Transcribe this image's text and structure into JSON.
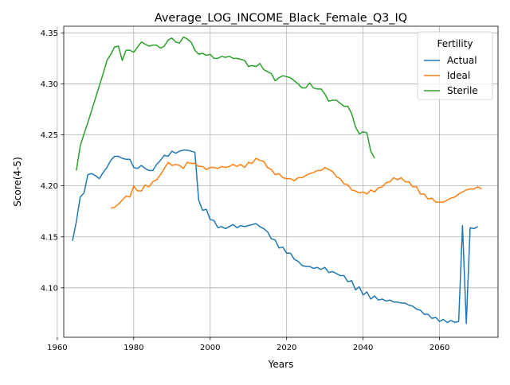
{
  "chart_data": {
    "type": "line",
    "title": "Average_LOG_INCOME_Black_Female_Q3_IQ",
    "xlabel": "Years",
    "ylabel": "Score(4-5)",
    "xlim": [
      1961.7,
      2075.3
    ],
    "ylim": [
      4.0515,
      4.3565
    ],
    "x_ticks": [
      1960,
      1980,
      2000,
      2020,
      2040,
      2060
    ],
    "y_ticks": [
      4.1,
      4.15,
      4.2,
      4.25,
      4.3,
      4.35
    ],
    "x_tick_labels": [
      "1960",
      "1980",
      "2000",
      "2020",
      "2040",
      "2060"
    ],
    "y_tick_labels": [
      "4.10",
      "4.15",
      "4.20",
      "4.25",
      "4.30",
      "4.35"
    ],
    "grid": true,
    "legend": {
      "title": "Fertility",
      "placement": "top-right"
    },
    "series": [
      {
        "name": "Actual",
        "color": "#1f77b4",
        "x_start": 1964,
        "values": [
          4.146,
          4.165,
          4.189,
          4.193,
          4.211,
          4.212,
          4.21,
          4.207,
          4.213,
          4.218,
          4.225,
          4.229,
          4.229,
          4.227,
          4.226,
          4.226,
          4.218,
          4.217,
          4.22,
          4.217,
          4.215,
          4.215,
          4.221,
          4.225,
          4.23,
          4.229,
          4.234,
          4.232,
          4.234,
          4.235,
          4.235,
          4.234,
          4.233,
          4.186,
          4.176,
          4.177,
          4.167,
          4.166,
          4.159,
          4.16,
          4.158,
          4.16,
          4.162,
          4.159,
          4.161,
          4.16,
          4.161,
          4.162,
          4.163,
          4.16,
          4.158,
          4.155,
          4.148,
          4.147,
          4.139,
          4.14,
          4.134,
          4.134,
          4.128,
          4.126,
          4.122,
          4.121,
          4.121,
          4.119,
          4.12,
          4.118,
          4.12,
          4.115,
          4.116,
          4.114,
          4.112,
          4.112,
          4.106,
          4.107,
          4.098,
          4.101,
          4.093,
          4.096,
          4.089,
          4.092,
          4.088,
          4.089,
          4.087,
          4.088,
          4.086,
          4.086,
          4.085,
          4.085,
          4.083,
          4.082,
          4.079,
          4.078,
          4.074,
          4.074,
          4.07,
          4.071,
          4.067,
          4.069,
          4.066,
          4.068,
          4.066,
          4.067,
          4.161,
          4.065,
          4.159,
          4.158,
          4.16
        ]
      },
      {
        "name": "Ideal",
        "color": "#ff7f0e",
        "x_start": 1974,
        "values": [
          4.178,
          4.179,
          4.182,
          4.186,
          4.19,
          4.189,
          4.2,
          4.195,
          4.195,
          4.201,
          4.199,
          4.204,
          4.206,
          4.211,
          4.217,
          4.223,
          4.22,
          4.221,
          4.22,
          4.217,
          4.223,
          4.222,
          4.222,
          4.219,
          4.219,
          4.216,
          4.218,
          4.218,
          4.217,
          4.219,
          4.218,
          4.219,
          4.221,
          4.219,
          4.221,
          4.218,
          4.223,
          4.222,
          4.227,
          4.225,
          4.224,
          4.218,
          4.216,
          4.211,
          4.212,
          4.208,
          4.207,
          4.207,
          4.205,
          4.208,
          4.208,
          4.21,
          4.212,
          4.213,
          4.215,
          4.215,
          4.218,
          4.216,
          4.214,
          4.209,
          4.207,
          4.202,
          4.201,
          4.196,
          4.195,
          4.193,
          4.194,
          4.192,
          4.196,
          4.194,
          4.198,
          4.199,
          4.203,
          4.204,
          4.208,
          4.206,
          4.208,
          4.204,
          4.204,
          4.199,
          4.199,
          4.192,
          4.192,
          4.187,
          4.188,
          4.184,
          4.184,
          4.184,
          4.186,
          4.188,
          4.189,
          4.192,
          4.194,
          4.196,
          4.197,
          4.197,
          4.199,
          4.197
        ]
      },
      {
        "name": "Sterile",
        "color": "#2ca02c",
        "x_start": 1965,
        "values": [
          4.215,
          4.239,
          4.251,
          4.262,
          4.274,
          4.286,
          4.298,
          4.31,
          4.323,
          4.329,
          4.336,
          4.337,
          4.323,
          4.333,
          4.333,
          4.331,
          4.336,
          4.341,
          4.339,
          4.337,
          4.338,
          4.338,
          4.335,
          4.337,
          4.343,
          4.345,
          4.341,
          4.34,
          4.346,
          4.344,
          4.341,
          4.333,
          4.329,
          4.33,
          4.328,
          4.329,
          4.325,
          4.325,
          4.327,
          4.326,
          4.327,
          4.325,
          4.325,
          4.324,
          4.323,
          4.317,
          4.318,
          4.317,
          4.32,
          4.314,
          4.312,
          4.31,
          4.303,
          4.306,
          4.308,
          4.307,
          4.306,
          4.303,
          4.3,
          4.296,
          4.296,
          4.301,
          4.296,
          4.295,
          4.295,
          4.29,
          4.283,
          4.284,
          4.284,
          4.281,
          4.278,
          4.278,
          4.271,
          4.258,
          4.251,
          4.253,
          4.252,
          4.234,
          4.227
        ]
      }
    ]
  }
}
